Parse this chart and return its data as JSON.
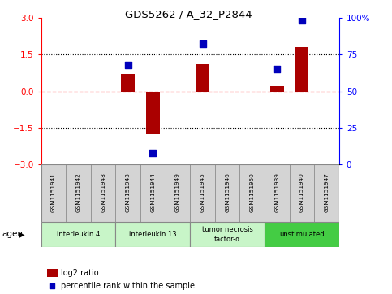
{
  "title": "GDS5262 / A_32_P2844",
  "samples": [
    "GSM1151941",
    "GSM1151942",
    "GSM1151948",
    "GSM1151943",
    "GSM1151944",
    "GSM1151949",
    "GSM1151945",
    "GSM1151946",
    "GSM1151950",
    "GSM1151939",
    "GSM1151940",
    "GSM1151947"
  ],
  "log2_ratio": [
    0.0,
    0.0,
    0.0,
    0.7,
    -1.75,
    0.0,
    1.1,
    0.0,
    0.0,
    0.2,
    1.8,
    0.0
  ],
  "percentile": [
    null,
    null,
    null,
    68,
    8,
    null,
    82,
    null,
    null,
    65,
    98,
    null
  ],
  "agents": [
    {
      "label": "interleukin 4",
      "start": 0,
      "end": 3,
      "color": "#c8f5c8"
    },
    {
      "label": "interleukin 13",
      "start": 3,
      "end": 6,
      "color": "#c8f5c8"
    },
    {
      "label": "tumor necrosis\nfactor-α",
      "start": 6,
      "end": 9,
      "color": "#c8f5c8"
    },
    {
      "label": "unstimulated",
      "start": 9,
      "end": 12,
      "color": "#44cc44"
    }
  ],
  "bar_color": "#aa0000",
  "dot_color": "#0000bb",
  "zero_line_color": "#ff4444",
  "ylim": [
    -3,
    3
  ],
  "yticks_left": [
    -3,
    -1.5,
    0,
    1.5,
    3
  ],
  "yticks_right_vals": [
    0,
    25,
    50,
    75,
    100
  ],
  "yticks_right_labels": [
    "0",
    "25",
    "50",
    "75",
    "100%"
  ],
  "hline_values": [
    -1.5,
    1.5
  ],
  "bar_width": 0.55,
  "dot_size": 35,
  "background_color": "#ffffff",
  "sample_box_color": "#d4d4d4",
  "legend_log2_label": "log2 ratio",
  "legend_pct_label": "percentile rank within the sample",
  "agent_label": "agent"
}
